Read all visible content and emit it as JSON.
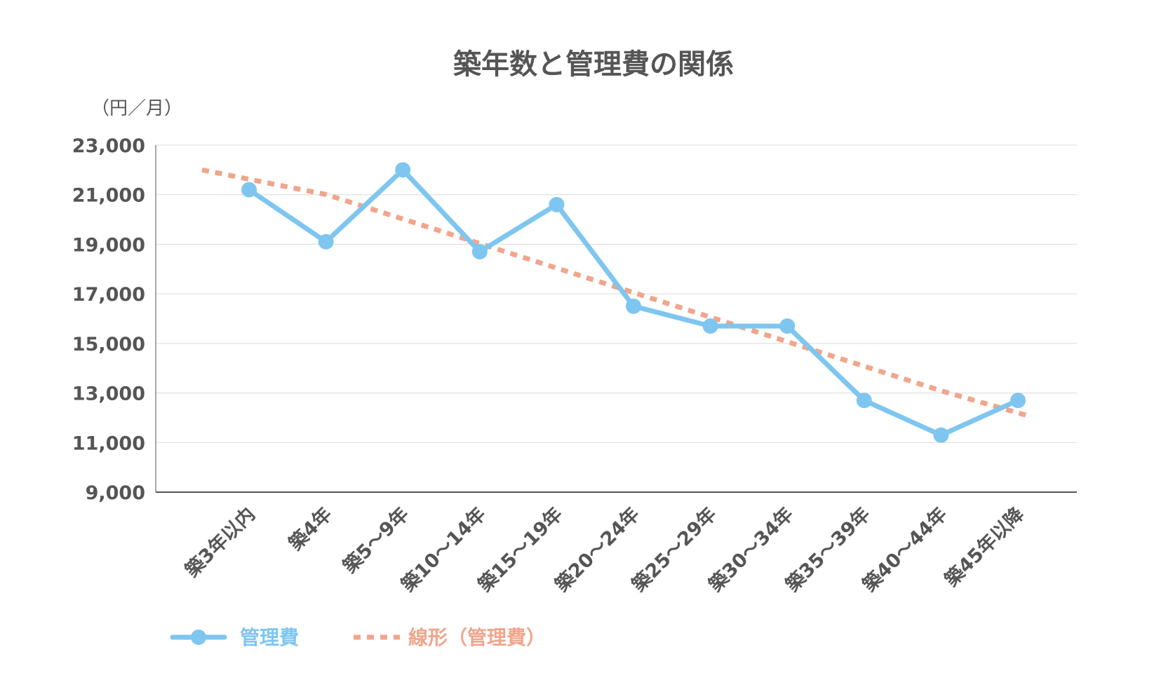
{
  "chart_data": {
    "type": "line",
    "title": "築年数と管理費の関係",
    "y_unit": "（円／月）",
    "categories": [
      "築3年以内",
      "築4年",
      "築5～9年",
      "築10～14年",
      "築15～19年",
      "築20～24年",
      "築25～29年",
      "築30～34年",
      "築35～39年",
      "築40～44年",
      "築45年以降"
    ],
    "series": [
      {
        "name": "管理費",
        "values": [
          21200,
          19100,
          22000,
          18700,
          20600,
          16500,
          15700,
          15700,
          12700,
          11300,
          12700
        ],
        "color": "#7ec6f0",
        "style": "solid-with-markers"
      },
      {
        "name": "線形（管理費）",
        "values": [
          22000,
          21010,
          20020,
          19030,
          18040,
          17050,
          16060,
          15070,
          14080,
          13090,
          12100
        ],
        "color": "#f0a58c",
        "style": "dotted"
      }
    ],
    "yticks": [
      "23,000",
      "21,000",
      "19,000",
      "17,000",
      "15,000",
      "13,000",
      "11,000",
      "9,000"
    ],
    "ylim": [
      9000,
      23000
    ],
    "grid": true,
    "legend_position": "bottom-left"
  }
}
